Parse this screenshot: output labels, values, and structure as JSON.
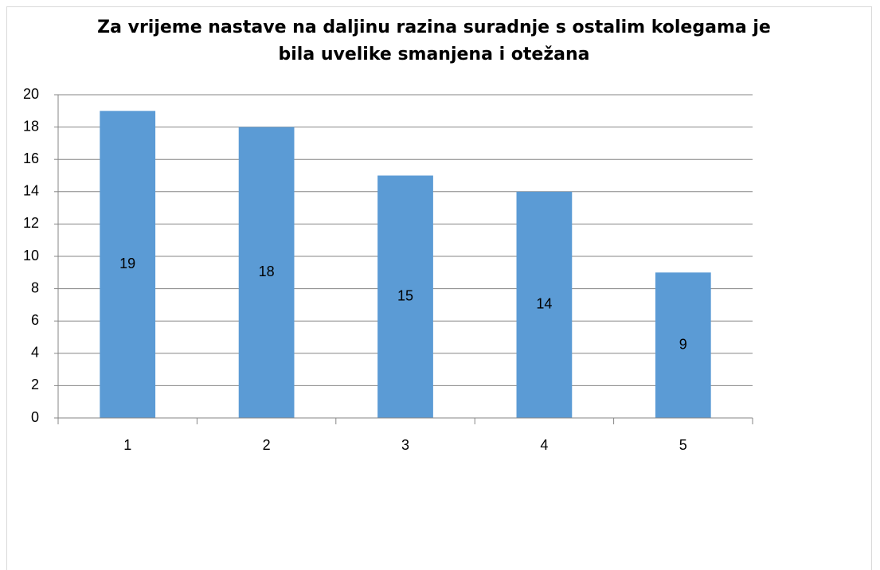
{
  "chart_data": {
    "type": "bar",
    "title": "Za vrijeme nastave na daljinu razina suradnje s ostalim kolegama je bila uvelike smanjena i otežana",
    "categories": [
      "1",
      "2",
      "3",
      "4",
      "5"
    ],
    "values": [
      19,
      18,
      15,
      14,
      9
    ],
    "color": "#5b9bd5",
    "ylim": [
      0,
      20
    ],
    "yticks": [
      0,
      2,
      4,
      6,
      8,
      10,
      12,
      14,
      16,
      18,
      20
    ],
    "grid": true
  }
}
